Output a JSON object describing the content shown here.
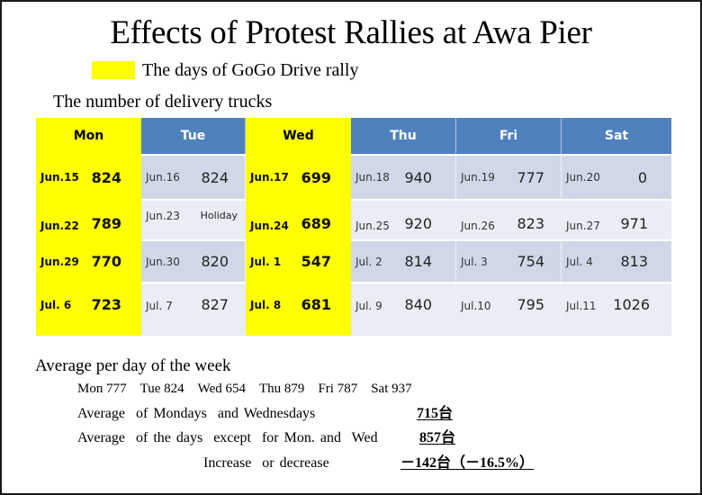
{
  "title": "Effects of Protest Rallies at Awa Pier",
  "legend": {
    "label": "The days of GoGo Drive rally",
    "color": "#ffff00"
  },
  "subtitle": "The number of delivery trucks",
  "table": {
    "headers": [
      "Mon",
      "Tue",
      "Wed",
      "Thu",
      "Fri",
      "Sat"
    ],
    "highlighted_columns": [
      "Mon",
      "Wed"
    ],
    "header_color": "#4f81bd",
    "rows": [
      [
        {
          "date": "Jun.15",
          "value": "824"
        },
        {
          "date": "Jun.16",
          "value": "824"
        },
        {
          "date": "Jun.17",
          "value": "699"
        },
        {
          "date": "Jun.18",
          "value": "940"
        },
        {
          "date": "Jun.19",
          "value": "777"
        },
        {
          "date": "Jun.20",
          "value": "0"
        }
      ],
      [
        {
          "date": "Jun.22",
          "value": "789"
        },
        {
          "date": "Jun.23",
          "value": "Holiday"
        },
        {
          "date": "Jun.24",
          "value": "689"
        },
        {
          "date": "Jun.25",
          "value": "920"
        },
        {
          "date": "Jun.26",
          "value": "823"
        },
        {
          "date": "Jun.27",
          "value": "971"
        }
      ],
      [
        {
          "date": "Jun.29",
          "value": "770"
        },
        {
          "date": "Jun.30",
          "value": "820"
        },
        {
          "date": "Jul. 1",
          "value": "547"
        },
        {
          "date": "Jul. 2",
          "value": "814"
        },
        {
          "date": "Jul. 3",
          "value": "754"
        },
        {
          "date": "Jul. 4",
          "value": "813"
        }
      ],
      [
        {
          "date": "Jul. 6",
          "value": "723"
        },
        {
          "date": "Jul. 7",
          "value": "827"
        },
        {
          "date": "Jul. 8",
          "value": "681"
        },
        {
          "date": "Jul. 9",
          "value": "840"
        },
        {
          "date": "Jul.10",
          "value": "795"
        },
        {
          "date": "Jul.11",
          "value": "1026"
        }
      ]
    ]
  },
  "averages": {
    "title": "Average per day of the week",
    "items": [
      "Mon 777",
      "Tue 824",
      "Wed 654",
      "Thu 879",
      "Fri 787",
      "Sat 937"
    ]
  },
  "summary": {
    "mon_wed_label": "Average  of Mondays  and Wednesdays",
    "mon_wed_value": "715台",
    "others_label": "Average  of the days  except  for Mon. and  Wed",
    "others_value": "857台",
    "change_label": "Increase  or decrease",
    "change_value": "－142台（－16.5%）"
  }
}
